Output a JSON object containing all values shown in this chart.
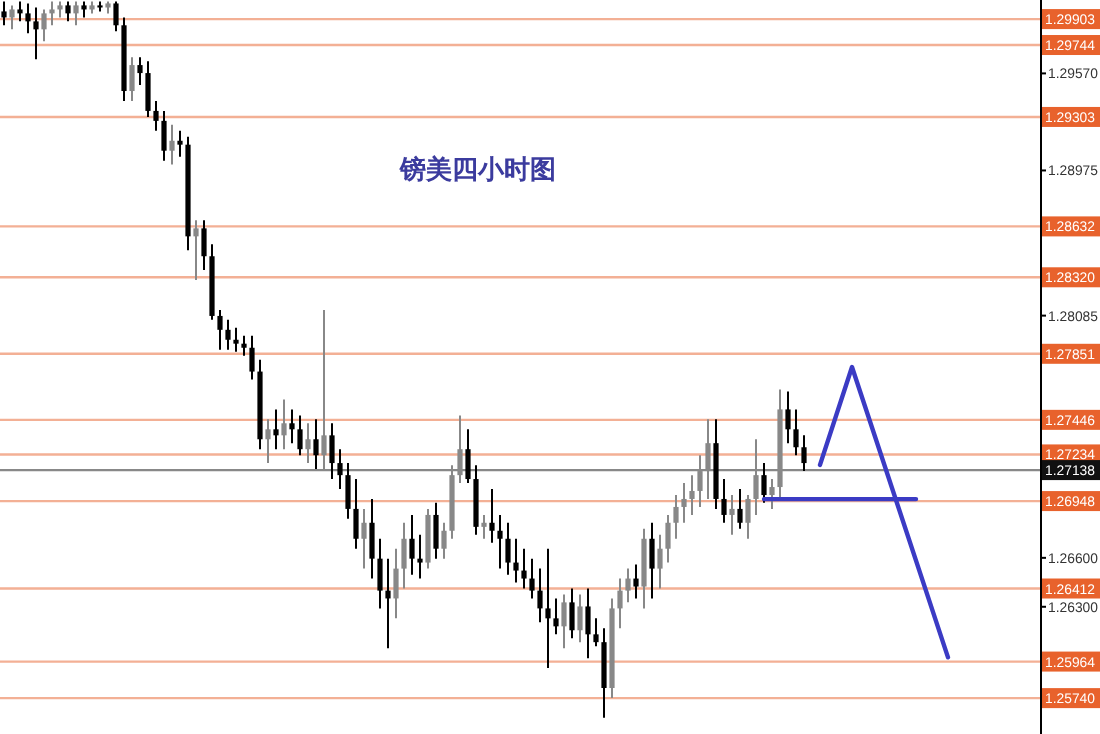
{
  "chart_data": {
    "type": "candlestick",
    "title": "镑美四小时图",
    "categories": [
      null,
      null,
      null,
      null,
      null,
      null,
      null,
      null,
      null,
      null,
      null,
      null,
      null,
      null,
      null,
      null,
      null,
      null,
      null,
      null,
      null,
      null,
      null,
      null,
      null,
      null,
      null,
      null,
      null,
      null,
      null,
      null,
      null,
      null,
      null,
      null,
      null,
      null,
      null,
      null,
      null,
      null,
      null,
      null,
      null,
      null,
      null,
      null,
      null,
      null,
      null,
      null,
      null,
      null,
      null,
      null,
      null,
      null,
      null,
      null,
      null,
      null,
      null,
      null,
      null,
      null,
      null,
      null,
      null,
      null,
      null,
      null,
      null,
      null,
      null,
      null,
      null,
      null,
      null,
      null,
      null,
      null,
      null,
      null,
      null,
      null,
      null,
      null,
      null,
      null,
      null,
      null,
      null,
      null,
      null,
      null,
      null,
      null,
      null,
      null,
      null,
      null,
      null,
      null,
      null,
      null,
      null,
      null,
      null,
      null,
      null,
      null,
      null,
      null,
      null,
      null,
      null,
      null,
      null,
      null,
      null,
      null,
      null,
      null,
      null,
      null,
      null,
      null,
      null,
      null
    ],
    "ohlc": [
      [
        1.2995,
        1.30011,
        1.29865,
        1.29913
      ],
      [
        1.29913,
        1.29987,
        1.2984,
        1.29962
      ],
      [
        1.29962,
        1.30011,
        1.29889,
        1.29938
      ],
      [
        1.29938,
        1.29999,
        1.29816,
        1.29889
      ],
      [
        1.29889,
        1.29974,
        1.29657,
        1.2984
      ],
      [
        1.2984,
        1.29962,
        1.29767,
        1.29938
      ],
      [
        1.29938,
        1.30011,
        1.29865,
        1.29962
      ],
      [
        1.29962,
        1.30011,
        1.29913,
        1.29987
      ],
      [
        1.29987,
        1.30011,
        1.29889,
        1.29938
      ],
      [
        1.29938,
        1.30011,
        1.29865,
        1.29987
      ],
      [
        1.29987,
        1.30011,
        1.29913,
        1.29962
      ],
      [
        1.29962,
        1.30011,
        1.29938,
        1.29987
      ],
      [
        1.29987,
        1.30011,
        1.2995,
        1.29974
      ],
      [
        1.29974,
        1.30011,
        1.29938,
        1.29999
      ],
      [
        1.29999,
        1.30011,
        1.29828,
        1.29865
      ],
      [
        1.29865,
        1.29913,
        1.29401,
        1.29462
      ],
      [
        1.29462,
        1.29669,
        1.29401,
        1.29621
      ],
      [
        1.29621,
        1.29669,
        1.29499,
        1.29572
      ],
      [
        1.29572,
        1.29645,
        1.29303,
        1.2934
      ],
      [
        1.2934,
        1.29401,
        1.29218,
        1.29279
      ],
      [
        1.29279,
        1.2934,
        1.29035,
        1.29096
      ],
      [
        1.29096,
        1.29255,
        1.29011,
        1.29157
      ],
      [
        1.29157,
        1.29218,
        1.29059,
        1.29133
      ],
      [
        1.29133,
        1.29181,
        1.28486,
        1.28571
      ],
      [
        1.28571,
        1.28669,
        1.28303,
        1.2862
      ],
      [
        1.2862,
        1.28669,
        1.28364,
        1.28449
      ],
      [
        1.28449,
        1.28523,
        1.28059,
        1.28083
      ],
      [
        1.28083,
        1.2812,
        1.27876,
        1.27998
      ],
      [
        1.27998,
        1.28059,
        1.27876,
        1.27937
      ],
      [
        1.27937,
        1.2801,
        1.27864,
        1.27913
      ],
      [
        1.27913,
        1.27961,
        1.27839,
        1.27888
      ],
      [
        1.27888,
        1.27961,
        1.27693,
        1.27742
      ],
      [
        1.27742,
        1.27815,
        1.27266,
        1.27327
      ],
      [
        1.27327,
        1.27449,
        1.27181,
        1.27388
      ],
      [
        1.27388,
        1.2751,
        1.27266,
        1.27351
      ],
      [
        1.27351,
        1.27571,
        1.27266,
        1.27425
      ],
      [
        1.27425,
        1.2751,
        1.27303,
        1.27388
      ],
      [
        1.27388,
        1.27473,
        1.27229,
        1.27266
      ],
      [
        1.27266,
        1.27425,
        1.27181,
        1.27327
      ],
      [
        1.27327,
        1.27449,
        1.27144,
        1.27229
      ],
      [
        1.27229,
        1.2812,
        1.27144,
        1.27351
      ],
      [
        1.27351,
        1.27425,
        1.27083,
        1.27181
      ],
      [
        1.27181,
        1.27266,
        1.27022,
        1.27107
      ],
      [
        1.27107,
        1.27181,
        1.26839,
        1.269
      ],
      [
        1.269,
        1.27083,
        1.26656,
        1.26717
      ],
      [
        1.26717,
        1.269,
        1.26534,
        1.26815
      ],
      [
        1.26815,
        1.26961,
        1.26473,
        1.26595
      ],
      [
        1.26595,
        1.26717,
        1.2629,
        1.26399
      ],
      [
        1.26399,
        1.26595,
        1.26046,
        1.26351
      ],
      [
        1.26351,
        1.26656,
        1.26229,
        1.26534
      ],
      [
        1.26534,
        1.26815,
        1.26412,
        1.26717
      ],
      [
        1.26717,
        1.26863,
        1.26497,
        1.26595
      ],
      [
        1.26595,
        1.26741,
        1.26473,
        1.26571
      ],
      [
        1.26571,
        1.269,
        1.26534,
        1.26863
      ],
      [
        1.26863,
        1.26937,
        1.26595,
        1.26656
      ],
      [
        1.26656,
        1.26815,
        1.26595,
        1.26766
      ],
      [
        1.26766,
        1.27168,
        1.26717,
        1.27107
      ],
      [
        1.27107,
        1.27473,
        1.27059,
        1.27266
      ],
      [
        1.27266,
        1.27388,
        1.27059,
        1.27083
      ],
      [
        1.27083,
        1.27168,
        1.26741,
        1.2679
      ],
      [
        1.2679,
        1.26863,
        1.26717,
        1.26815
      ],
      [
        1.26815,
        1.27022,
        1.26693,
        1.26766
      ],
      [
        1.26766,
        1.26863,
        1.26534,
        1.26717
      ],
      [
        1.26717,
        1.26815,
        1.26497,
        1.26571
      ],
      [
        1.26571,
        1.26717,
        1.26449,
        1.26522
      ],
      [
        1.26522,
        1.26656,
        1.26412,
        1.26473
      ],
      [
        1.26473,
        1.26595,
        1.26351,
        1.26399
      ],
      [
        1.26399,
        1.26534,
        1.26205,
        1.2629
      ],
      [
        1.2629,
        1.26656,
        1.25924,
        1.26229
      ],
      [
        1.26229,
        1.26351,
        1.26131,
        1.2618
      ],
      [
        1.2618,
        1.26375,
        1.26046,
        1.26327
      ],
      [
        1.26327,
        1.26412,
        1.26107,
        1.26156
      ],
      [
        1.26156,
        1.26375,
        1.26083,
        1.26302
      ],
      [
        1.26302,
        1.26412,
        1.25985,
        1.26131
      ],
      [
        1.26131,
        1.26229,
        1.26058,
        1.26083
      ],
      [
        1.26083,
        1.26168,
        1.25619,
        1.25802
      ],
      [
        1.25802,
        1.26351,
        1.25741,
        1.2629
      ],
      [
        1.2629,
        1.26473,
        1.26168,
        1.26399
      ],
      [
        1.26399,
        1.26534,
        1.26327,
        1.26473
      ],
      [
        1.26473,
        1.26559,
        1.26351,
        1.26424
      ],
      [
        1.26424,
        1.26778,
        1.2629,
        1.26717
      ],
      [
        1.26717,
        1.26815,
        1.26351,
        1.26534
      ],
      [
        1.26534,
        1.26741,
        1.26412,
        1.26656
      ],
      [
        1.26656,
        1.26863,
        1.26571,
        1.26815
      ],
      [
        1.26815,
        1.26985,
        1.26717,
        1.26912
      ],
      [
        1.26912,
        1.27059,
        1.26815,
        1.26961
      ],
      [
        1.26961,
        1.27107,
        1.26863,
        1.2701
      ],
      [
        1.2701,
        1.27229,
        1.26912,
        1.27132
      ],
      [
        1.27132,
        1.27449,
        1.26961,
        1.27303
      ],
      [
        1.27303,
        1.27449,
        1.269,
        1.26961
      ],
      [
        1.26961,
        1.27083,
        1.26815,
        1.26863
      ],
      [
        1.26863,
        1.26985,
        1.26741,
        1.269
      ],
      [
        1.269,
        1.27022,
        1.26778,
        1.26815
      ],
      [
        1.26815,
        1.26985,
        1.26717,
        1.26961
      ],
      [
        1.26961,
        1.27327,
        1.26863,
        1.27107
      ],
      [
        1.27107,
        1.27181,
        1.26937,
        1.26985
      ],
      [
        1.26985,
        1.27083,
        1.269,
        1.27034
      ],
      [
        1.27034,
        1.27632,
        1.26961,
        1.2751
      ],
      [
        1.2751,
        1.2762,
        1.27303,
        1.27388
      ],
      [
        1.27388,
        1.2751,
        1.27229,
        1.27278
      ],
      [
        1.27278,
        1.27351,
        1.27132,
        1.27181
      ],
      null,
      null,
      null,
      null,
      null,
      null,
      null,
      null,
      null,
      null,
      null,
      null,
      null,
      null,
      null,
      null,
      null,
      null,
      null,
      null,
      null,
      null,
      null,
      null,
      null,
      null,
      null,
      null,
      null
    ],
    "series": [
      {
        "type": "line",
        "color": "#3b3bc4",
        "values": [
          null,
          null,
          null,
          null,
          null,
          null,
          null,
          null,
          null,
          null,
          null,
          null,
          null,
          null,
          null,
          null,
          null,
          null,
          null,
          null,
          null,
          null,
          null,
          null,
          null,
          null,
          null,
          null,
          null,
          null,
          null,
          null,
          null,
          null,
          null,
          null,
          null,
          null,
          null,
          null,
          null,
          null,
          null,
          null,
          null,
          null,
          null,
          null,
          null,
          null,
          null,
          null,
          null,
          null,
          null,
          null,
          null,
          null,
          null,
          null,
          null,
          null,
          null,
          null,
          null,
          null,
          null,
          null,
          null,
          null,
          null,
          null,
          null,
          null,
          null,
          null,
          null,
          null,
          null,
          null,
          null,
          null,
          null,
          null,
          null,
          null,
          null,
          null,
          null,
          null,
          null,
          null,
          null,
          null,
          null,
          null,
          null,
          null,
          null,
          null,
          null,
          null,
          1.2717,
          null,
          null,
          null,
          1.2777,
          null,
          null,
          null,
          null,
          null,
          null,
          null,
          null,
          null,
          null,
          null,
          1.2599,
          null,
          null,
          null,
          null,
          null,
          null,
          null,
          null,
          null,
          null,
          null
        ]
      },
      {
        "type": "line",
        "color": "#3b3bc4",
        "values": [
          null,
          null,
          null,
          null,
          null,
          null,
          null,
          null,
          null,
          null,
          null,
          null,
          null,
          null,
          null,
          null,
          null,
          null,
          null,
          null,
          null,
          null,
          null,
          null,
          null,
          null,
          null,
          null,
          null,
          null,
          null,
          null,
          null,
          null,
          null,
          null,
          null,
          null,
          null,
          null,
          null,
          null,
          null,
          null,
          null,
          null,
          null,
          null,
          null,
          null,
          null,
          null,
          null,
          null,
          null,
          null,
          null,
          null,
          null,
          null,
          null,
          null,
          null,
          null,
          null,
          null,
          null,
          null,
          null,
          null,
          null,
          null,
          null,
          null,
          null,
          null,
          null,
          null,
          null,
          null,
          null,
          null,
          null,
          null,
          null,
          null,
          null,
          null,
          null,
          null,
          null,
          null,
          null,
          null,
          null,
          1.2696,
          null,
          null,
          null,
          null,
          null,
          null,
          null,
          null,
          null,
          null,
          null,
          null,
          null,
          null,
          null,
          null,
          null,
          null,
          1.2696,
          null,
          null,
          null,
          null,
          null,
          null,
          null,
          null,
          null,
          null,
          null,
          null,
          null,
          null,
          null
        ]
      }
    ],
    "ylim": [
      1.2552,
      1.3002
    ],
    "yticks": [
      {
        "value": 1.2957,
        "label": "1.29570"
      },
      1.28975,
      1.28085,
      {
        "value": 1.266,
        "label": "1.26600"
      },
      {
        "value": 1.263,
        "label": "1.26300"
      }
    ],
    "ref_lines": [
      {
        "axis": "y",
        "value": 1.29903,
        "label": "1.29903",
        "color": "#e8622c"
      },
      {
        "axis": "y",
        "value": 1.29744,
        "label": "1.29744",
        "color": "#e8622c"
      },
      {
        "axis": "y",
        "value": 1.29303,
        "label": "1.29303",
        "color": "#e8622c"
      },
      {
        "axis": "y",
        "value": 1.28632,
        "label": "1.28632",
        "color": "#e8622c"
      },
      {
        "axis": "y",
        "value": 1.2832,
        "label": "1.28320",
        "color": "#e8622c"
      },
      {
        "axis": "y",
        "value": 1.27851,
        "label": "1.27851",
        "color": "#e8622c"
      },
      {
        "axis": "y",
        "value": 1.27446,
        "label": "1.27446",
        "color": "#e8622c"
      },
      {
        "axis": "y",
        "value": 1.27234,
        "label": "1.27234",
        "color": "#e8622c"
      },
      {
        "axis": "y",
        "value": 1.27138,
        "label": "1.27138",
        "color": "#111111"
      },
      {
        "axis": "y",
        "value": 1.26948,
        "label": "1.26948",
        "color": "#e8622c"
      },
      {
        "axis": "y",
        "value": 1.26412,
        "label": "1.26412",
        "color": "#e8622c"
      },
      {
        "axis": "y",
        "value": 1.25964,
        "label": "1.25964",
        "color": "#e8622c"
      },
      {
        "axis": "y",
        "value": 1.2574,
        "label": "1.25740",
        "color": "#e8622c"
      }
    ]
  }
}
